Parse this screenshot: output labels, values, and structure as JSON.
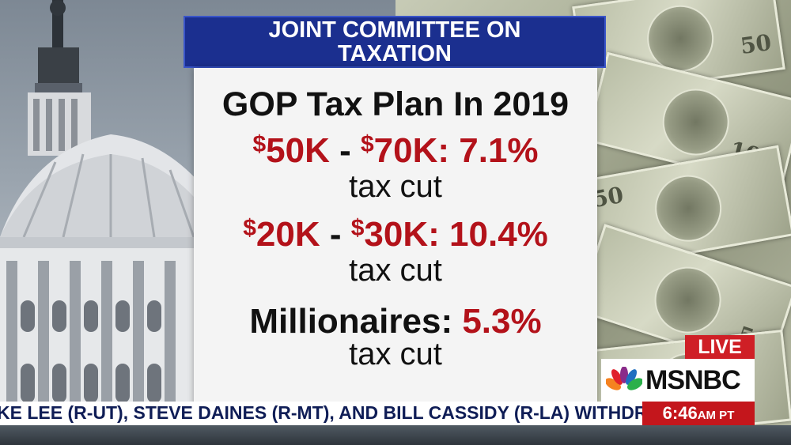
{
  "header": {
    "line1": "JOINT COMMITTEE ON",
    "line2": "TAXATION"
  },
  "panel": {
    "title": "GOP Tax Plan In 2019",
    "stats": [
      {
        "a_dollar": "$",
        "a": "50K",
        "dash": " - ",
        "b_dollar": "$",
        "b": "70K:",
        "pct": " 7.1%",
        "sub": "tax cut"
      },
      {
        "a_dollar": "$",
        "a": "20K",
        "dash": " - ",
        "b_dollar": "$",
        "b": "30K:",
        "pct": " 10.4%",
        "sub": "tax cut"
      }
    ],
    "millionaires": {
      "label": "Millionaires:",
      "pct": " 5.3%",
      "sub": "tax cut"
    }
  },
  "bug": {
    "live": "LIVE",
    "network": "MSNBC"
  },
  "ticker": {
    "text": "KE LEE (R-UT), STEVE DAINES (R-MT), AND BILL CASSIDY (R-LA) WITHDRAW THEIR",
    "time": "6:46",
    "ampm": "AM PT"
  },
  "colors": {
    "accent_red": "#b3121a",
    "header_blue": "#1b2f8f",
    "live_red": "#cf1f26"
  }
}
